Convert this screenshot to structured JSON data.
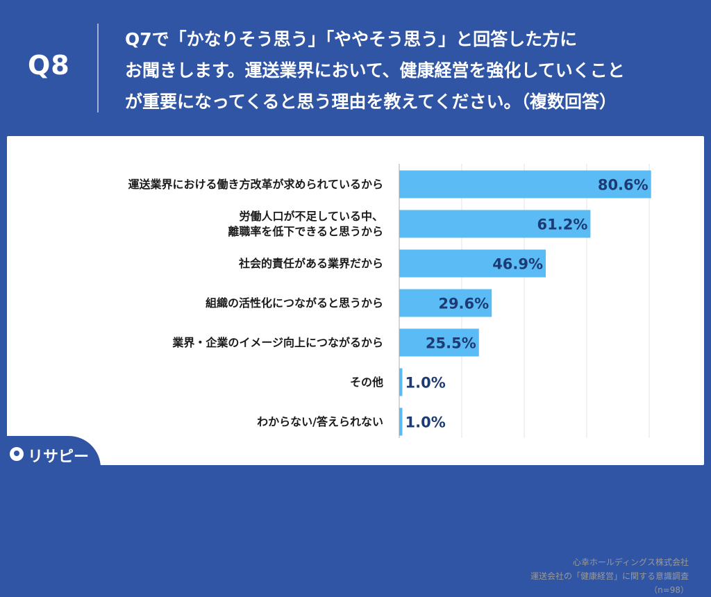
{
  "header": {
    "qnum": "Q8",
    "question_lines": [
      "Q7で「かなりそう思う」「ややそう思う」と回答した方に",
      "お聞きします。運送業界において、健康経営を強化していくこと",
      "が重要になってくると思う理由を教えてください。（複数回答）"
    ]
  },
  "chart_data": {
    "type": "bar",
    "orientation": "horizontal",
    "categories": [
      [
        "運送業界における働き方改革が求められているから"
      ],
      [
        "労働人口が不足している中、",
        "離職率を低下できると思うから"
      ],
      [
        "社会的責任がある業界だから"
      ],
      [
        "組織の活性化につながると思うから"
      ],
      [
        "業界・企業のイメージ向上につながるから"
      ],
      [
        "その他"
      ],
      [
        "わからない/答えられない"
      ]
    ],
    "values": [
      80.6,
      61.2,
      46.9,
      29.6,
      25.5,
      1.0,
      1.0
    ],
    "value_labels": [
      "80.6%",
      "61.2%",
      "46.9%",
      "29.6%",
      "25.5%",
      "1.0%",
      "1.0%"
    ],
    "xlim": [
      0,
      100
    ],
    "grid": true,
    "bar_color": "#5bbcf5",
    "label_color": "#1c3a73"
  },
  "source": {
    "line1": "心幸ホールディングス株式会社",
    "line2": "運送会社の「健康経営」に関する意識調査",
    "line3": "（n=98）"
  },
  "logo": {
    "text": "リサピー"
  }
}
